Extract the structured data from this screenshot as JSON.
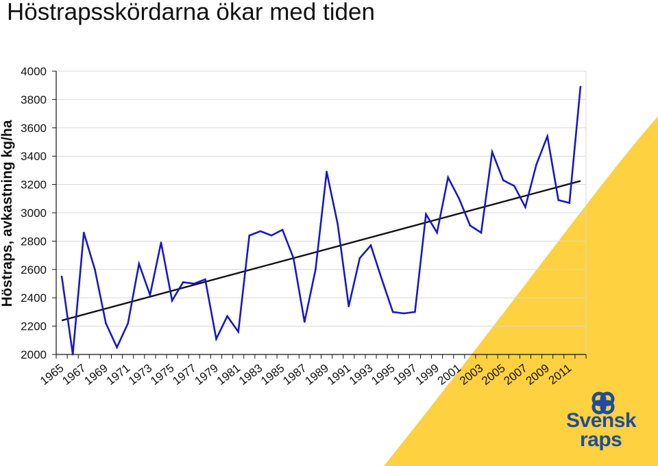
{
  "title": "Höstrapsskördarna ökar med tiden",
  "colors": {
    "series": "#1818c0",
    "trend": "#111111",
    "accent_yellow": "#fdd13f",
    "brand_blue": "#1f4d9b"
  },
  "logo": {
    "line1": "Svensk",
    "line2": "raps",
    "icon": "rapeseed-flower-logo-icon"
  },
  "chart_data": {
    "type": "line",
    "title": "Höstrapsskördarna ökar med tiden",
    "ylabel": "Höstraps, avkastning kg/ha",
    "xlabel": "",
    "ylim": [
      2000,
      4000
    ],
    "yticks": [
      2000,
      2200,
      2400,
      2600,
      2800,
      3000,
      3200,
      3400,
      3600,
      3800,
      4000
    ],
    "xtick_labels": [
      "1965",
      "1967",
      "1969",
      "1971",
      "1973",
      "1975",
      "1977",
      "1979",
      "1981",
      "1983",
      "1985",
      "1987",
      "1989",
      "1991",
      "1993",
      "1995",
      "1997",
      "1999",
      "2001",
      "2003",
      "2005",
      "2007",
      "2009",
      "2011"
    ],
    "grid": "horizontal",
    "legend": "none",
    "series": [
      {
        "x": [
          1965,
          1966,
          1967,
          1968,
          1969,
          1970,
          1971,
          1972,
          1973,
          1974,
          1975,
          1976,
          1977,
          1978,
          1979,
          1980,
          1981,
          1982,
          1983,
          1984,
          1985,
          1986,
          1987,
          1988,
          1989,
          1990,
          1991,
          1992,
          1993,
          1994,
          1995,
          1996,
          1997,
          1998,
          1999,
          2000,
          2001,
          2002,
          2003,
          2004,
          2005,
          2006,
          2007,
          2008,
          2009,
          2010,
          2011,
          2012
        ],
        "values": [
          2550,
          2000,
          2860,
          2600,
          2220,
          2050,
          2220,
          2640,
          2420,
          2790,
          2380,
          2510,
          2500,
          2530,
          2110,
          2270,
          2160,
          2840,
          2870,
          2840,
          2880,
          2680,
          2230,
          2600,
          3290,
          2920,
          2340,
          2680,
          2770,
          2530,
          2300,
          2290,
          2300,
          2990,
          2860,
          3250,
          3100,
          2910,
          2860,
          3430,
          3230,
          3190,
          3040,
          3340,
          3540,
          3090,
          3070,
          3890
        ]
      }
    ],
    "trendline": {
      "x": [
        1965,
        2012
      ],
      "values": [
        2240,
        3225
      ]
    }
  }
}
